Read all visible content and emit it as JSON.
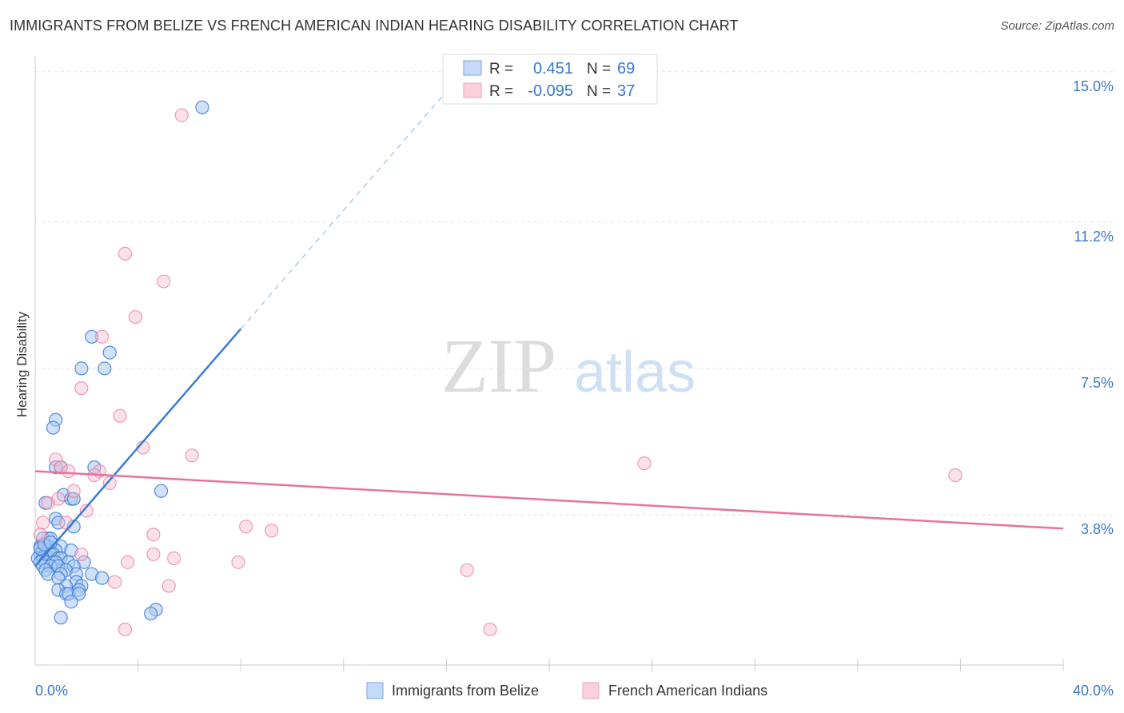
{
  "title": "IMMIGRANTS FROM BELIZE VS FRENCH AMERICAN INDIAN HEARING DISABILITY CORRELATION CHART",
  "source": "Source: ZipAtlas.com",
  "watermark": {
    "zip": "ZIP",
    "atlas": "atlas"
  },
  "colors": {
    "blue": "#3a7bd5",
    "blue_fill": "#a9c8f2",
    "pink": "#e8739a",
    "pink_fill": "#f6bfd1",
    "tick_text": "#3a78c9"
  },
  "legend_box": {
    "rows": [
      {
        "r_label": "R =",
        "r_value": "0.451",
        "n_label": "N =",
        "n_value": "69"
      },
      {
        "r_label": "R =",
        "r_value": "-0.095",
        "n_label": "N =",
        "n_value": "37"
      }
    ]
  },
  "chart_data": {
    "type": "scatter",
    "ylabel": "Hearing Disability",
    "xlim": [
      0,
      40
    ],
    "ylim": [
      0,
      15.4
    ],
    "y_ticks": [
      {
        "value": 3.8,
        "label": "3.8%"
      },
      {
        "value": 7.5,
        "label": "7.5%"
      },
      {
        "value": 11.2,
        "label": "11.2%"
      },
      {
        "value": 15.0,
        "label": "15.0%"
      }
    ],
    "x_tick_labels": [
      {
        "value": 0,
        "label": "0.0%"
      },
      {
        "value": 40,
        "label": "40.0%"
      }
    ],
    "legend": [
      "Immigrants from Belize",
      "French American Indians"
    ],
    "series": [
      {
        "name": "Immigrants from Belize",
        "r": 0.451,
        "n": 69,
        "trend": {
          "x0": 0,
          "y0": 2.5,
          "x1": 8,
          "y1": 8.5,
          "dash_to_x": 16.5
        },
        "points": [
          [
            6.5,
            14.1
          ],
          [
            2.2,
            8.3
          ],
          [
            2.9,
            7.9
          ],
          [
            1.8,
            7.5
          ],
          [
            2.7,
            7.5
          ],
          [
            0.8,
            6.2
          ],
          [
            0.7,
            6.0
          ],
          [
            0.8,
            5.0
          ],
          [
            1.0,
            5.0
          ],
          [
            2.3,
            5.0
          ],
          [
            1.1,
            4.3
          ],
          [
            1.4,
            4.2
          ],
          [
            1.5,
            4.2
          ],
          [
            4.9,
            4.4
          ],
          [
            0.4,
            4.1
          ],
          [
            0.8,
            3.7
          ],
          [
            0.9,
            3.6
          ],
          [
            1.5,
            3.5
          ],
          [
            0.5,
            3.2
          ],
          [
            0.3,
            3.2
          ],
          [
            0.6,
            3.2
          ],
          [
            0.2,
            3.0
          ],
          [
            0.5,
            3.0
          ],
          [
            1.0,
            3.0
          ],
          [
            0.3,
            2.9
          ],
          [
            0.5,
            2.9
          ],
          [
            0.8,
            2.9
          ],
          [
            1.4,
            2.9
          ],
          [
            0.2,
            2.8
          ],
          [
            0.4,
            2.8
          ],
          [
            0.6,
            2.8
          ],
          [
            0.7,
            2.8
          ],
          [
            0.1,
            2.7
          ],
          [
            0.3,
            2.7
          ],
          [
            0.9,
            2.7
          ],
          [
            1.0,
            2.7
          ],
          [
            0.2,
            2.6
          ],
          [
            0.4,
            2.6
          ],
          [
            0.7,
            2.6
          ],
          [
            0.8,
            2.6
          ],
          [
            1.3,
            2.6
          ],
          [
            1.9,
            2.6
          ],
          [
            0.3,
            2.5
          ],
          [
            0.6,
            2.5
          ],
          [
            0.9,
            2.5
          ],
          [
            1.5,
            2.5
          ],
          [
            0.4,
            2.4
          ],
          [
            1.2,
            2.4
          ],
          [
            1.6,
            2.3
          ],
          [
            2.2,
            2.3
          ],
          [
            0.5,
            2.3
          ],
          [
            1.0,
            2.3
          ],
          [
            2.6,
            2.2
          ],
          [
            0.9,
            2.2
          ],
          [
            1.6,
            2.1
          ],
          [
            1.2,
            2.0
          ],
          [
            1.8,
            2.0
          ],
          [
            0.9,
            1.9
          ],
          [
            1.7,
            1.9
          ],
          [
            1.2,
            1.8
          ],
          [
            1.3,
            1.8
          ],
          [
            1.7,
            1.8
          ],
          [
            1.4,
            1.6
          ],
          [
            4.7,
            1.4
          ],
          [
            4.5,
            1.3
          ],
          [
            1.0,
            1.2
          ],
          [
            0.2,
            2.95
          ],
          [
            0.35,
            3.05
          ],
          [
            0.6,
            3.1
          ]
        ]
      },
      {
        "name": "French American Indians",
        "r": -0.095,
        "n": 37,
        "trend": {
          "x0": 0,
          "y0": 4.9,
          "x1": 40,
          "y1": 3.45
        },
        "points": [
          [
            5.7,
            13.9
          ],
          [
            3.5,
            10.4
          ],
          [
            5.0,
            9.7
          ],
          [
            3.9,
            8.8
          ],
          [
            2.6,
            8.3
          ],
          [
            1.8,
            7.0
          ],
          [
            3.3,
            6.3
          ],
          [
            4.2,
            5.5
          ],
          [
            6.1,
            5.3
          ],
          [
            0.8,
            5.2
          ],
          [
            23.7,
            5.1
          ],
          [
            1.0,
            5.0
          ],
          [
            1.3,
            4.9
          ],
          [
            2.5,
            4.9
          ],
          [
            35.8,
            4.8
          ],
          [
            2.3,
            4.8
          ],
          [
            2.9,
            4.6
          ],
          [
            1.5,
            4.4
          ],
          [
            0.9,
            4.2
          ],
          [
            0.5,
            4.1
          ],
          [
            2.0,
            3.9
          ],
          [
            0.3,
            3.6
          ],
          [
            1.2,
            3.6
          ],
          [
            8.2,
            3.5
          ],
          [
            9.2,
            3.4
          ],
          [
            0.2,
            3.3
          ],
          [
            4.6,
            3.3
          ],
          [
            1.8,
            2.8
          ],
          [
            4.6,
            2.8
          ],
          [
            5.4,
            2.7
          ],
          [
            7.9,
            2.6
          ],
          [
            3.6,
            2.6
          ],
          [
            16.8,
            2.4
          ],
          [
            3.1,
            2.1
          ],
          [
            5.2,
            2.0
          ],
          [
            3.5,
            0.9
          ],
          [
            17.7,
            0.9
          ]
        ]
      }
    ]
  }
}
